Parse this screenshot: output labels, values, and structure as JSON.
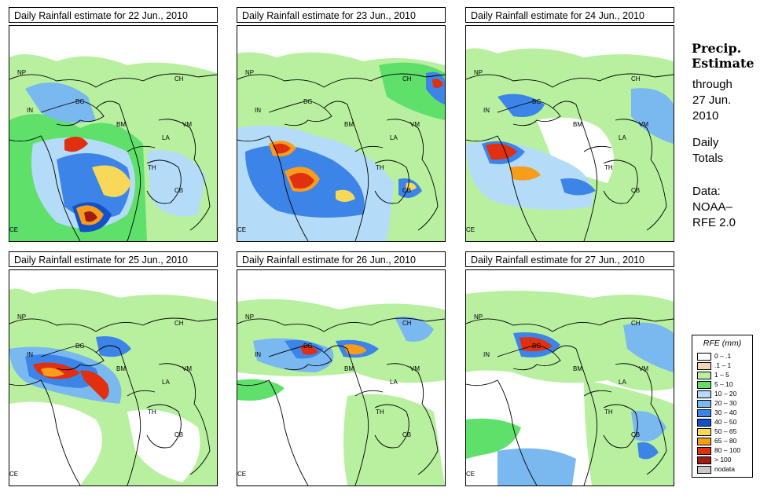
{
  "panels": [
    {
      "title": "Daily Rainfall estimate for  22 Jun., 2010"
    },
    {
      "title": "Daily Rainfall estimate for  23 Jun., 2010"
    },
    {
      "title": "Daily Rainfall estimate for  24 Jun., 2010"
    },
    {
      "title": "Daily Rainfall estimate for  25 Jun., 2010"
    },
    {
      "title": "Daily Rainfall estimate for  26 Jun., 2010"
    },
    {
      "title": "Daily Rainfall estimate for  27 Jun., 2010"
    }
  ],
  "map_labels": {
    "np": "NP",
    "ch": "CH",
    "in": "IN",
    "bg": "BG",
    "bm": "BM",
    "vm": "VM",
    "la": "LA",
    "th": "TH",
    "cb": "CB",
    "ce": "CE"
  },
  "sidebar": {
    "title_line1": "Precip.",
    "title_line2": "Estimate",
    "through": "through",
    "date_line1": "27 Jun.",
    "date_line2": "2010",
    "daily": "Daily",
    "totals": "Totals",
    "data_label": "Data:",
    "source_line1": "NOAA–",
    "source_line2": "RFE 2.0"
  },
  "legend": {
    "title": "RFE (mm)",
    "items": [
      {
        "label": "0 – .1",
        "color": "#ffffff"
      },
      {
        "label": ".1 – 1",
        "color": "#ecd8bc"
      },
      {
        "label": "1 – 5",
        "color": "#b8f0a0"
      },
      {
        "label": "5 – 10",
        "color": "#5ee06a"
      },
      {
        "label": "10 – 20",
        "color": "#b4dcf8"
      },
      {
        "label": "20 – 30",
        "color": "#7ab8f0"
      },
      {
        "label": "30 – 40",
        "color": "#3c84e8"
      },
      {
        "label": "40 – 50",
        "color": "#1450c8"
      },
      {
        "label": "50 – 65",
        "color": "#f8d858"
      },
      {
        "label": "65 – 80",
        "color": "#f89c1c"
      },
      {
        "label": "80 – 100",
        "color": "#e03010"
      },
      {
        "label": "> 100",
        "color": "#a01c10"
      },
      {
        "label": "nodata",
        "color": "#c8c8c8"
      }
    ]
  }
}
